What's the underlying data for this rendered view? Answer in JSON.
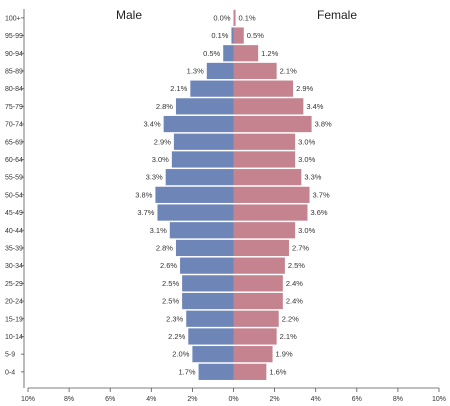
{
  "chart_data": {
    "type": "bar",
    "orientation": "horizontal",
    "left_label": "Male",
    "right_label": "Female",
    "categories": [
      "100+",
      "95-99",
      "90-94",
      "85-89",
      "80-84",
      "75-79",
      "70-74",
      "65-69",
      "60-64",
      "55-59",
      "50-54",
      "45-49",
      "40-44",
      "35-39",
      "30-34",
      "25-29",
      "20-24",
      "15-19",
      "10-14",
      "5-9",
      "0-4"
    ],
    "series": [
      {
        "name": "Male",
        "color": "#6e85b7",
        "values": [
          0.0,
          0.1,
          0.5,
          1.3,
          2.1,
          2.8,
          3.4,
          2.9,
          3.0,
          3.3,
          3.8,
          3.7,
          3.1,
          2.8,
          2.6,
          2.5,
          2.5,
          2.3,
          2.2,
          2.0,
          1.7
        ],
        "value_labels": [
          "0.0%",
          "0.1%",
          "0.5%",
          "1.3%",
          "2.1%",
          "2.8%",
          "3.4%",
          "2.9%",
          "3.0%",
          "3.3%",
          "3.8%",
          "3.7%",
          "3.1%",
          "2.8%",
          "2.6%",
          "2.5%",
          "2.5%",
          "2.3%",
          "2.2%",
          "2.0%",
          "1.7%"
        ]
      },
      {
        "name": "Female",
        "color": "#c4838f",
        "values": [
          0.1,
          0.5,
          1.2,
          2.1,
          2.9,
          3.4,
          3.8,
          3.0,
          3.0,
          3.3,
          3.7,
          3.6,
          3.0,
          2.7,
          2.5,
          2.4,
          2.4,
          2.2,
          2.1,
          1.9,
          1.6
        ],
        "value_labels": [
          "0.1%",
          "0.5%",
          "1.2%",
          "2.1%",
          "2.9%",
          "3.4%",
          "3.8%",
          "3.0%",
          "3.0%",
          "3.3%",
          "3.7%",
          "3.6%",
          "3.0%",
          "2.7%",
          "2.5%",
          "2.4%",
          "2.4%",
          "2.2%",
          "2.1%",
          "1.9%",
          "1.6%"
        ]
      }
    ],
    "x_ticks": [
      -10,
      -8,
      -6,
      -4,
      -2,
      0,
      2,
      4,
      6,
      8,
      10
    ],
    "x_tick_labels": [
      "10%",
      "8%",
      "6%",
      "4%",
      "2%",
      "0%",
      "2%",
      "4%",
      "6%",
      "8%",
      "10%"
    ],
    "xlim": [
      -10,
      10
    ],
    "grid": false,
    "legend": "none"
  }
}
